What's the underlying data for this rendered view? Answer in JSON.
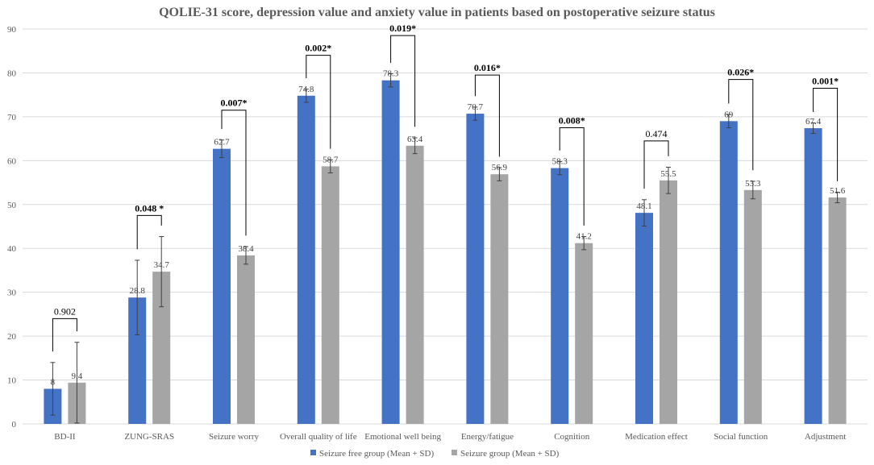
{
  "chart_data": {
    "type": "bar",
    "title": "QOLIE-31 score, depression value and anxiety value in patients based on postoperative seizure status",
    "xlabel": "",
    "ylabel": "",
    "ylim": [
      0,
      90
    ],
    "yticks": [
      0,
      10,
      20,
      30,
      40,
      50,
      60,
      70,
      80,
      90
    ],
    "grid": true,
    "legend_position": "bottom-center",
    "categories": [
      "BD-II",
      "ZUNG-SRAS",
      "Seizure worry",
      "Overall quality of life",
      "Emotional well being",
      "Energy/fatigue",
      "Cognition",
      "Medication effect",
      "Social function",
      "Adjustment"
    ],
    "series": [
      {
        "name": "Seizure free group (Mean + SD)",
        "color": "#4472C4",
        "values": [
          8,
          28.8,
          62.7,
          74.8,
          78.3,
          70.7,
          58.3,
          48.1,
          69,
          67.4
        ],
        "labels": [
          "8",
          "28.8",
          "62.7",
          "74.8",
          "78.3",
          "70.7",
          "58.3",
          "48.1",
          "69",
          "67.4"
        ],
        "sd": [
          6,
          8.5,
          2,
          1.5,
          1.5,
          1.5,
          1.5,
          3,
          1.5,
          1.2
        ]
      },
      {
        "name": "Seizure group (Mean + SD)",
        "color": "#A5A5A5",
        "values": [
          9.4,
          34.7,
          38.4,
          58.7,
          63.4,
          56.9,
          41.2,
          55.5,
          53.3,
          51.6
        ],
        "labels": [
          "9.4",
          "34.7",
          "38.4",
          "58.7",
          "63.4",
          "56.9",
          "41.2",
          "55.5",
          "53.3",
          "51.6"
        ],
        "sd": [
          9.2,
          8,
          2,
          1.5,
          1.8,
          1.5,
          1.5,
          3,
          2,
          1.2
        ]
      }
    ],
    "p_values": [
      {
        "category": "BD-II",
        "label": "0.902",
        "significant": false,
        "top": 24
      },
      {
        "category": "ZUNG-SRAS",
        "label": "0.048 *",
        "significant": true,
        "top": 47.5
      },
      {
        "category": "Seizure worry",
        "label": "0.007*",
        "significant": true,
        "top": 71.5
      },
      {
        "category": "Overall quality of life",
        "label": "0.002*",
        "significant": true,
        "top": 84
      },
      {
        "category": "Emotional well being",
        "label": "0.019*",
        "significant": true,
        "top": 88.5
      },
      {
        "category": "Energy/fatigue",
        "label": "0.016*",
        "significant": true,
        "top": 79.5
      },
      {
        "category": "Cognition",
        "label": "0.008*",
        "significant": true,
        "top": 67.5
      },
      {
        "category": "Medication effect",
        "label": "0.474",
        "significant": false,
        "top": 64.5
      },
      {
        "category": "Social function",
        "label": "0.026*",
        "significant": true,
        "top": 78.5
      },
      {
        "category": "Adjustment",
        "label": "0.001*",
        "significant": true,
        "top": 76.5
      }
    ]
  }
}
